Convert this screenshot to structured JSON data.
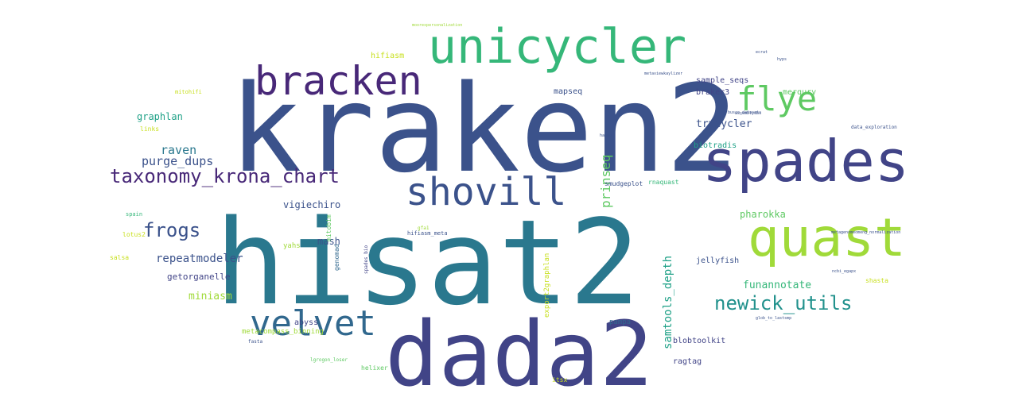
{
  "palette": {
    "background": "#ffffff",
    "navy": "#3b528b",
    "indigo": "#414487",
    "purple": "#482878",
    "teal": "#2a788e",
    "teal_blue": "#31688e",
    "sea": "#21918c",
    "green_teal": "#1fa187",
    "green": "#35b779",
    "light_green": "#5ec962",
    "lime": "#a0da39",
    "yellow_green": "#c8e020",
    "yellow": "#fde725"
  },
  "words": [
    {
      "text": "kraken2",
      "weight": 1.0,
      "color": "#3b528b",
      "rotated": false
    },
    {
      "text": "hisat2",
      "weight": 0.98,
      "color": "#2a788e",
      "rotated": false
    },
    {
      "text": "dada2",
      "weight": 0.9,
      "color": "#414487",
      "rotated": false
    },
    {
      "text": "spades",
      "weight": 0.62,
      "color": "#414487",
      "rotated": false
    },
    {
      "text": "unicycler",
      "weight": 0.55,
      "color": "#35b779",
      "rotated": false
    },
    {
      "text": "quast",
      "weight": 0.6,
      "color": "#a0da39",
      "rotated": false
    },
    {
      "text": "bracken",
      "weight": 0.48,
      "color": "#482878",
      "rotated": false
    },
    {
      "text": "shovill",
      "weight": 0.46,
      "color": "#3b528b",
      "rotated": false
    },
    {
      "text": "velvet",
      "weight": 0.42,
      "color": "#31688e",
      "rotated": false
    },
    {
      "text": "flye",
      "weight": 0.4,
      "color": "#5ec962",
      "rotated": false
    },
    {
      "text": "taxonomy_krona_chart",
      "weight": 0.26,
      "color": "#482878",
      "rotated": false
    },
    {
      "text": "newick_utils",
      "weight": 0.26,
      "color": "#21918c",
      "rotated": false
    },
    {
      "text": "frogs",
      "weight": 0.24,
      "color": "#3b528b",
      "rotated": false
    },
    {
      "text": "graphlan",
      "weight": 0.1,
      "color": "#1fa187",
      "rotated": false
    },
    {
      "text": "raven",
      "weight": 0.15,
      "color": "#2a788e",
      "rotated": false
    },
    {
      "text": "purge_dups",
      "weight": 0.15,
      "color": "#3b528b",
      "rotated": false
    },
    {
      "text": "vigiechiro",
      "weight": 0.11,
      "color": "#3b528b",
      "rotated": false
    },
    {
      "text": "mash",
      "weight": 0.1,
      "color": "#3b528b",
      "rotated": false
    },
    {
      "text": "repeatmodeler",
      "weight": 0.13,
      "color": "#3b528b",
      "rotated": false
    },
    {
      "text": "getorganelle",
      "weight": 0.09,
      "color": "#414487",
      "rotated": false
    },
    {
      "text": "miniasm",
      "weight": 0.12,
      "color": "#a0da39",
      "rotated": false
    },
    {
      "text": "abyss",
      "weight": 0.08,
      "color": "#414487",
      "rotated": false
    },
    {
      "text": "trycycler",
      "weight": 0.12,
      "color": "#3b528b",
      "rotated": false
    },
    {
      "text": "prinseq",
      "weight": 0.14,
      "color": "#5ec962",
      "rotated": true
    },
    {
      "text": "samtools_depth",
      "weight": 0.13,
      "color": "#1fa187",
      "rotated": true
    },
    {
      "text": "funannotate",
      "weight": 0.12,
      "color": "#35b779",
      "rotated": false
    },
    {
      "text": "pharokka",
      "weight": 0.1,
      "color": "#5ec962",
      "rotated": false
    },
    {
      "text": "jellyfish",
      "weight": 0.08,
      "color": "#3b528b",
      "rotated": false
    },
    {
      "text": "biotradis",
      "weight": 0.07,
      "color": "#1fa187",
      "rotated": false
    },
    {
      "text": "sample_seqs",
      "weight": 0.08,
      "color": "#414487",
      "rotated": false
    },
    {
      "text": "braker3",
      "weight": 0.07,
      "color": "#414487",
      "rotated": false
    },
    {
      "text": "merqury",
      "weight": 0.07,
      "color": "#5ec962",
      "rotated": false
    },
    {
      "text": "mapseq",
      "weight": 0.07,
      "color": "#3b528b",
      "rotated": false
    },
    {
      "text": "hifiasm",
      "weight": 0.07,
      "color": "#c8e020",
      "rotated": false
    },
    {
      "text": "smudgeplot",
      "weight": 0.05,
      "color": "#3b528b",
      "rotated": false
    },
    {
      "text": "rnaquast",
      "weight": 0.05,
      "color": "#35b779",
      "rotated": false
    },
    {
      "text": "ragtag",
      "weight": 0.07,
      "color": "#414487",
      "rotated": false
    },
    {
      "text": "blobtoolkit",
      "weight": 0.07,
      "color": "#414487",
      "rotated": false
    },
    {
      "text": "pampa",
      "weight": 0.05,
      "color": "#31688e",
      "rotated": false
    },
    {
      "text": "export2graphlan",
      "weight": 0.06,
      "color": "#c8e020",
      "rotated": true
    },
    {
      "text": "genomad",
      "weight": 0.05,
      "color": "#31688e",
      "rotated": true
    },
    {
      "text": "mitobim",
      "weight": 0.05,
      "color": "#5ec962",
      "rotated": true
    },
    {
      "text": "spades_bio",
      "weight": 0.03,
      "color": "#414487",
      "rotated": true
    },
    {
      "text": "yahs",
      "weight": 0.05,
      "color": "#a0da39",
      "rotated": false
    },
    {
      "text": "hifiasm_meta",
      "weight": 0.04,
      "color": "#3b528b",
      "rotated": false
    },
    {
      "text": "gfa1",
      "weight": 0.03,
      "color": "#a0da39",
      "rotated": false
    },
    {
      "text": "metacompass_binning",
      "weight": 0.05,
      "color": "#a0da39",
      "rotated": false
    },
    {
      "text": "fasta",
      "weight": 0.03,
      "color": "#3b528b",
      "rotated": false
    },
    {
      "text": "lgrogon_loser",
      "weight": 0.03,
      "color": "#5ec962",
      "rotated": false
    },
    {
      "text": "helixer",
      "weight": 0.05,
      "color": "#5ec962",
      "rotated": false
    },
    {
      "text": "itsx",
      "weight": 0.04,
      "color": "#c8e020",
      "rotated": false
    },
    {
      "text": "salsa",
      "weight": 0.05,
      "color": "#c8e020",
      "rotated": false
    },
    {
      "text": "lotus2",
      "weight": 0.05,
      "color": "#c8e020",
      "rotated": false
    },
    {
      "text": "spain",
      "weight": 0.04,
      "color": "#35b779",
      "rotated": false
    },
    {
      "text": "links",
      "weight": 0.05,
      "color": "#c8e020",
      "rotated": false
    },
    {
      "text": "mitohifi",
      "weight": 0.05,
      "color": "#c8e020",
      "rotated": false
    },
    {
      "text": "shasta",
      "weight": 0.05,
      "color": "#c8e020",
      "rotated": false
    },
    {
      "text": "data_exploration",
      "weight": 0.04,
      "color": "#3b528b",
      "rotated": false
    },
    {
      "text": "metagenomeomeng_normalization",
      "weight": 0.03,
      "color": "#3b528b",
      "rotated": false
    },
    {
      "text": "ncbi_egapx",
      "weight": 0.03,
      "color": "#3b528b",
      "rotated": false
    },
    {
      "text": "glob_to_lastsmp",
      "weight": 0.03,
      "color": "#3b528b",
      "rotated": false
    },
    {
      "text": "busco_datasets",
      "weight": 0.03,
      "color": "#3b528b",
      "rotated": false
    },
    {
      "text": "hapog",
      "weight": 0.03,
      "color": "#3b528b",
      "rotated": false
    },
    {
      "text": "ecrat",
      "weight": 0.03,
      "color": "#3b528b",
      "rotated": false
    },
    {
      "text": "hyps",
      "weight": 0.03,
      "color": "#3b528b",
      "rotated": false
    },
    {
      "text": "metaviewkaylizer",
      "weight": 0.03,
      "color": "#3b528b",
      "rotated": false
    },
    {
      "text": "assemblydbs",
      "weight": 0.03,
      "color": "#3b528b",
      "rotated": false
    },
    {
      "text": "moorexpersonalization",
      "weight": 0.03,
      "color": "#a0da39",
      "rotated": false
    }
  ]
}
